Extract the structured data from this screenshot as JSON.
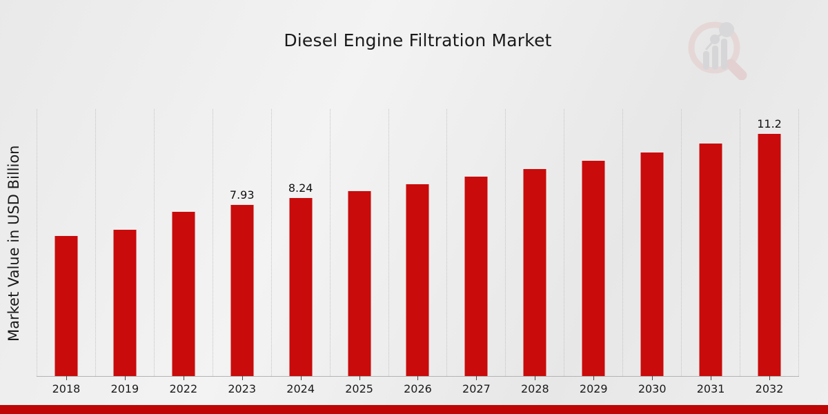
{
  "title": "Diesel Engine Filtration Market",
  "ylabel": "Market Value in USD Billion",
  "colors": {
    "bar": "#c90b0b",
    "bar_edge": "#ececec",
    "banner": "#bf0505",
    "grid": "#c3c3c3",
    "axis": "#b3b3b3",
    "text": "#1a1a1a"
  },
  "logo": {
    "name": "magnifier-bar-chart watermark"
  },
  "chart_data": {
    "type": "bar",
    "title": "Diesel Engine Filtration Market",
    "xlabel": "",
    "ylabel": "Market Value in USD Billion",
    "ylim": [
      0,
      12.33
    ],
    "grid": "vertical dotted lines, no horizontal grid, no y tick labels",
    "legend": "none",
    "categories": [
      "2018",
      "2019",
      "2022",
      "2023",
      "2024",
      "2025",
      "2026",
      "2027",
      "2028",
      "2029",
      "2030",
      "2031",
      "2032"
    ],
    "values": [
      6.5,
      6.78,
      7.63,
      7.93,
      8.24,
      8.56,
      8.9,
      9.24,
      9.6,
      9.98,
      10.36,
      10.77,
      11.2
    ],
    "data_labels": {
      "2023": "7.93",
      "2024": "8.24",
      "2032": "11.2"
    }
  }
}
